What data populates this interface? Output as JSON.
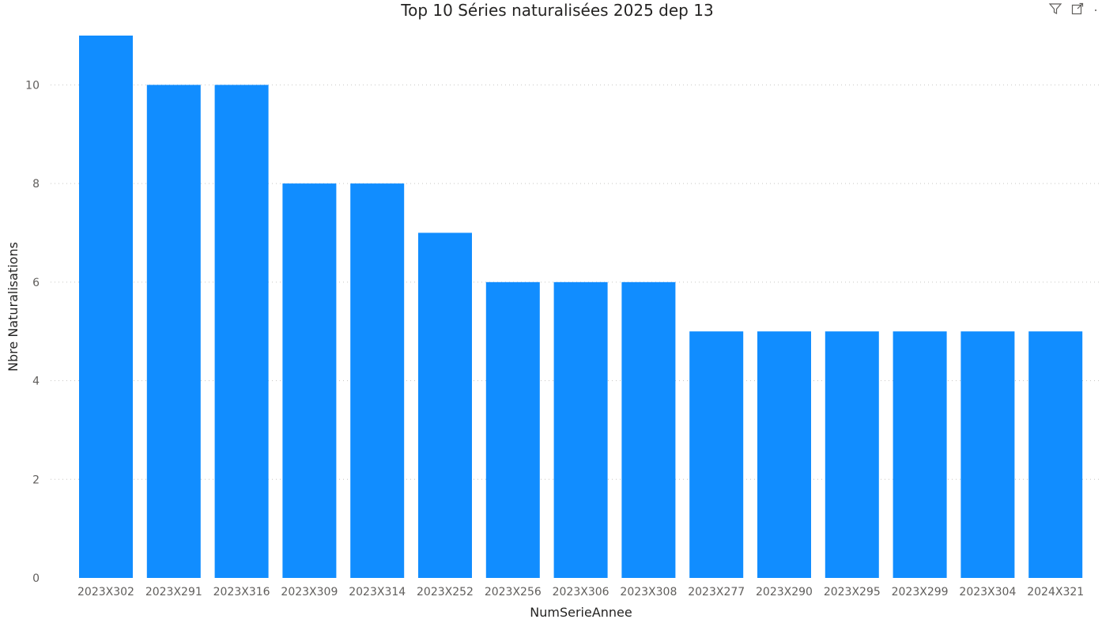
{
  "visual": {
    "icons": [
      "filter-icon",
      "focus-mode-icon",
      "more-options-icon"
    ]
  },
  "chart_data": {
    "type": "bar",
    "title": "Top 10 Séries naturalisées 2025 dep 13",
    "xlabel": "NumSerieAnnee",
    "ylabel": "Nbre Naturalisations",
    "categories": [
      "2023X302",
      "2023X291",
      "2023X316",
      "2023X309",
      "2023X314",
      "2023X252",
      "2023X256",
      "2023X306",
      "2023X308",
      "2023X277",
      "2023X290",
      "2023X295",
      "2023X299",
      "2023X304",
      "2024X321"
    ],
    "values": [
      11,
      10,
      10,
      8,
      8,
      7,
      6,
      6,
      6,
      5,
      5,
      5,
      5,
      5,
      5
    ],
    "ylim": [
      0,
      11
    ],
    "yticks": [
      0,
      2,
      4,
      6,
      8,
      10
    ],
    "grid": true,
    "bar_color": "#118DFF"
  }
}
